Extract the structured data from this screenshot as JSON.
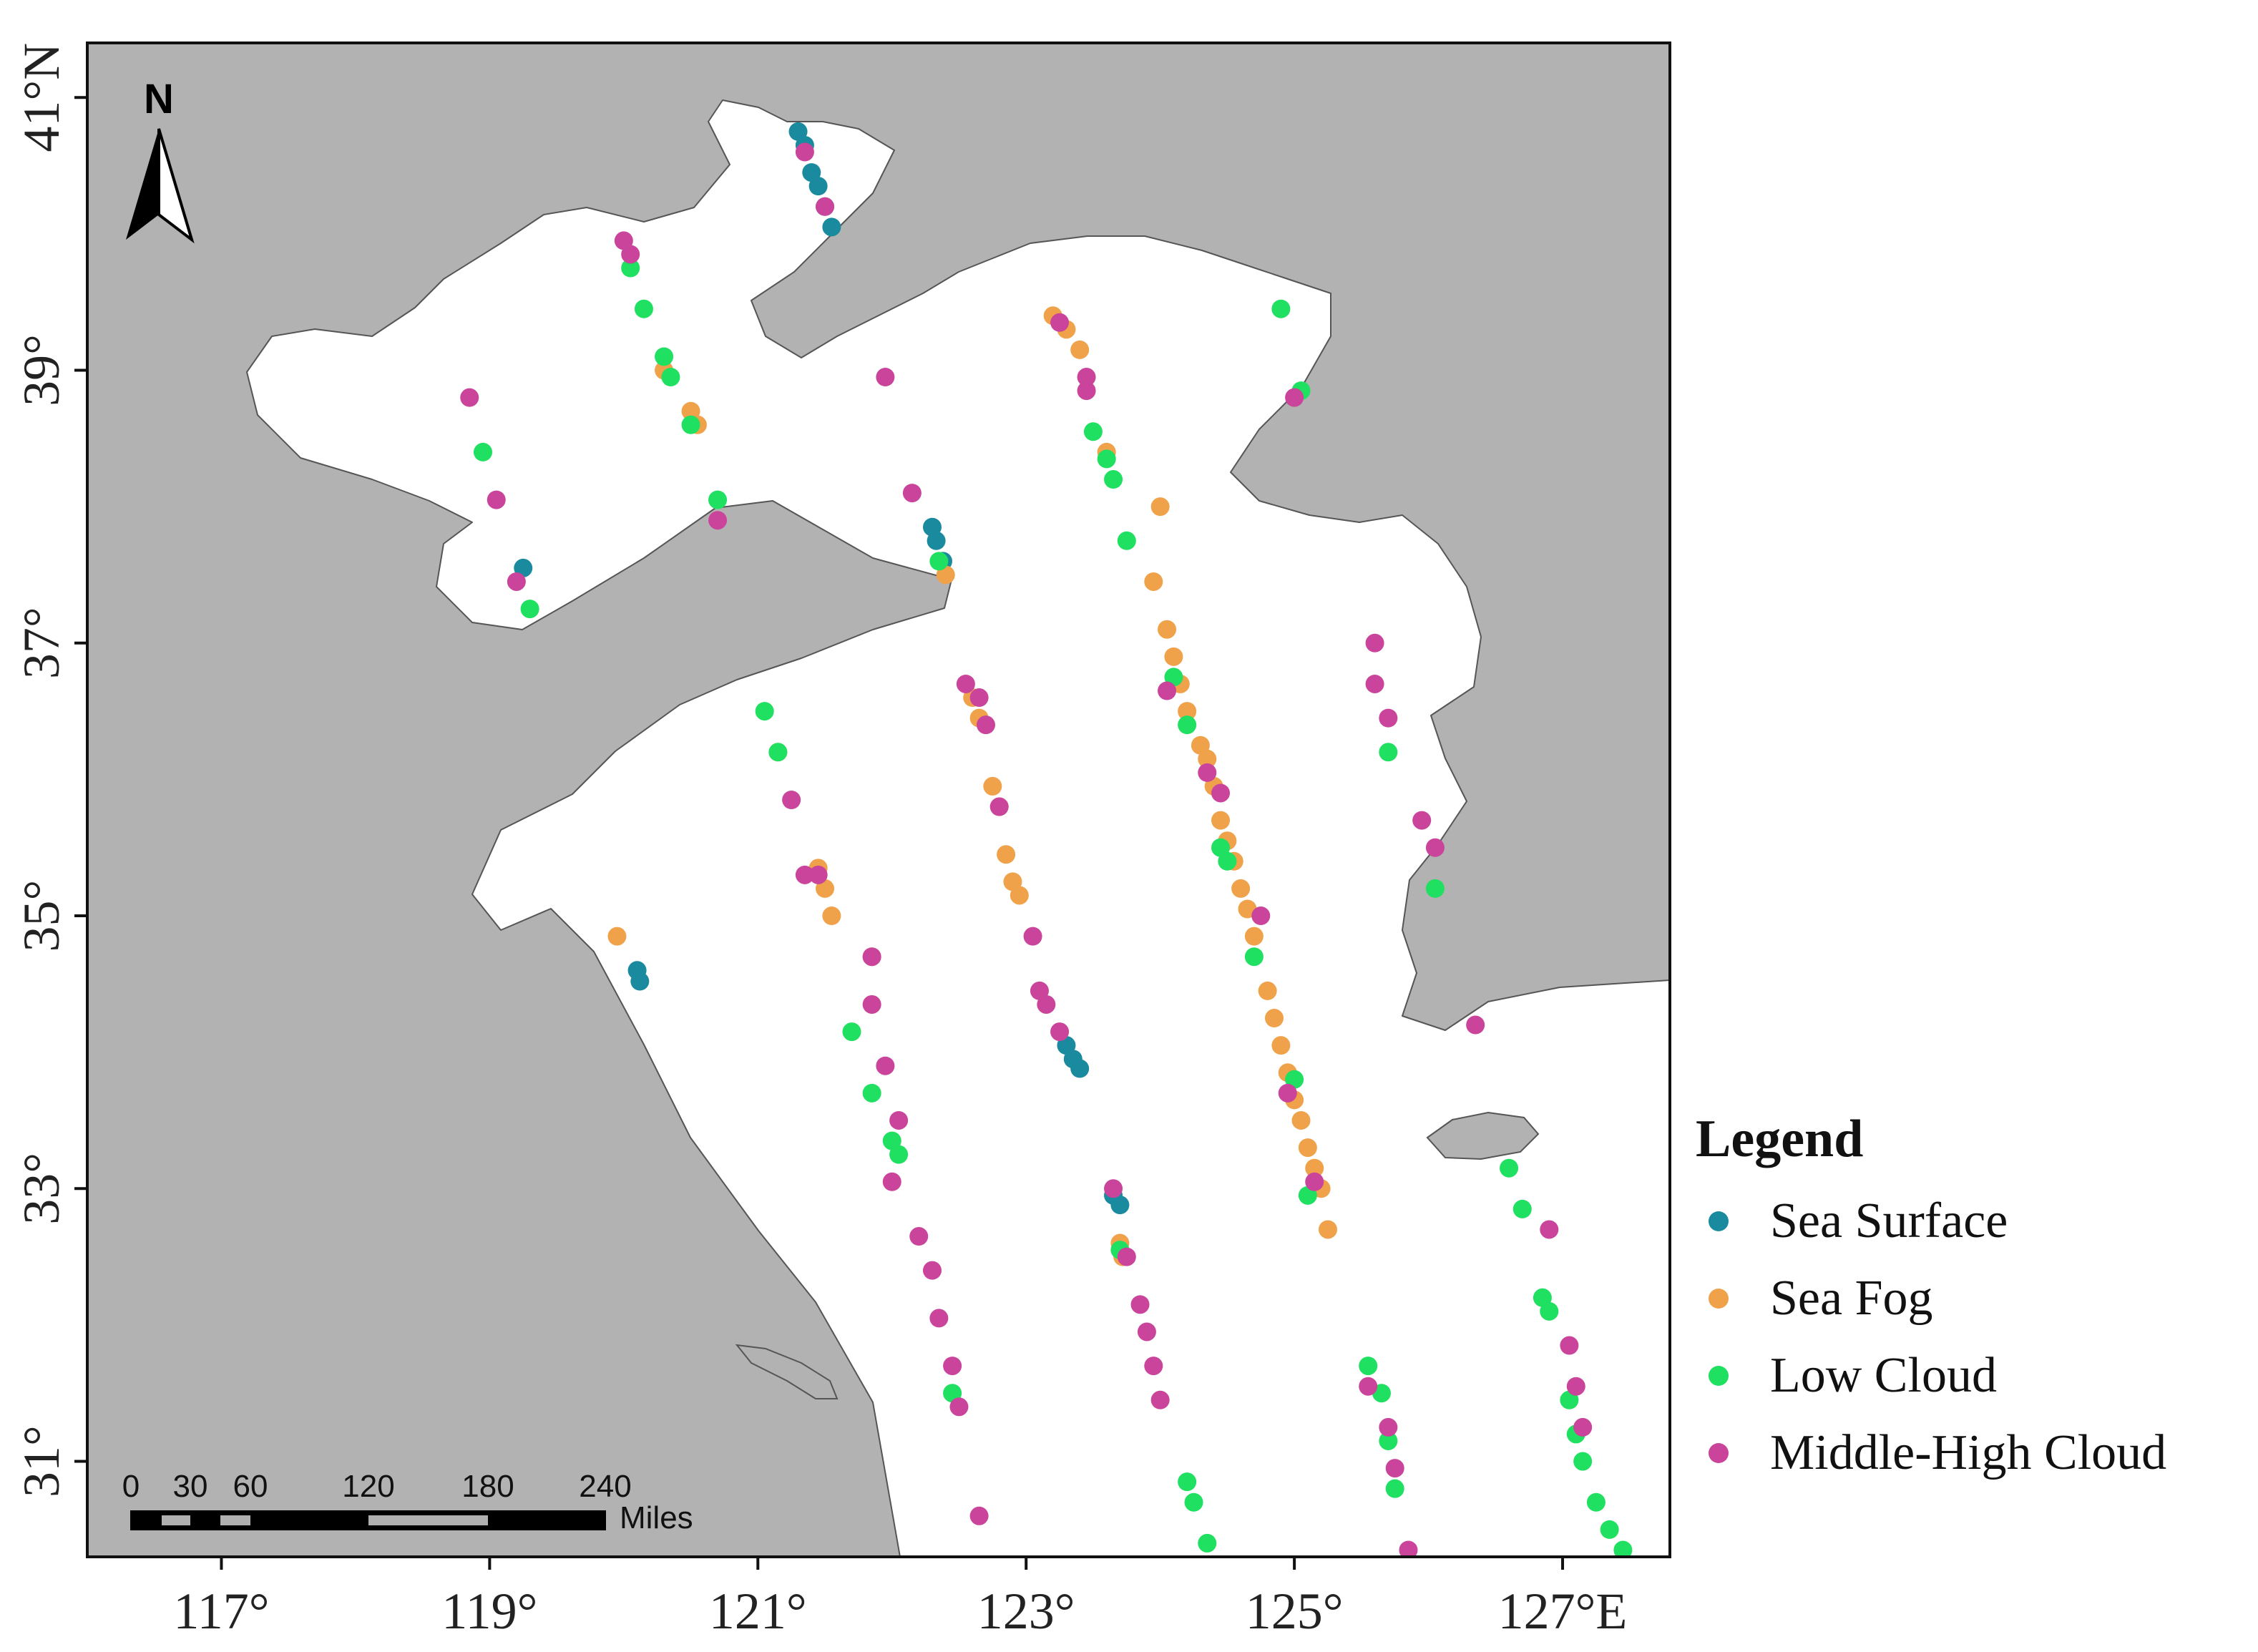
{
  "map": {
    "lon_range": [
      116.0,
      127.8
    ],
    "lat_range": [
      30.3,
      41.4
    ],
    "lon_ticks": [
      117,
      119,
      121,
      123,
      125,
      127
    ],
    "lat_ticks": [
      31,
      33,
      35,
      37,
      39,
      41
    ],
    "lon_tick_labels": [
      "117°",
      "119°",
      "121°",
      "123°",
      "125°",
      "127°E"
    ],
    "lat_tick_labels": [
      "31°",
      "33°",
      "35°",
      "37°",
      "39°",
      "41°N"
    ],
    "land_color": "#b2b2b2",
    "sea_color": "#ffffff",
    "coast_color": "#555555"
  },
  "north_arrow": {
    "label": "N"
  },
  "scale_bar": {
    "labels": [
      "0",
      "30",
      "60",
      "120",
      "180",
      "240"
    ],
    "unit": "Miles"
  },
  "legend": {
    "title": "Legend",
    "items": [
      {
        "label": "Sea Surface",
        "color": "#1a8a9e"
      },
      {
        "label": "Sea Fog",
        "color": "#f0a24a"
      },
      {
        "label": "Low Cloud",
        "color": "#1fe060"
      },
      {
        "label": "Middle-High Cloud",
        "color": "#c9449a"
      }
    ]
  },
  "points": {
    "sea_surface": [
      [
        121.3,
        40.75
      ],
      [
        121.35,
        40.65
      ],
      [
        121.4,
        40.45
      ],
      [
        121.45,
        40.35
      ],
      [
        121.5,
        40.2
      ],
      [
        121.55,
        40.05
      ],
      [
        122.3,
        37.85
      ],
      [
        122.33,
        37.75
      ],
      [
        122.38,
        37.6
      ],
      [
        119.25,
        37.55
      ],
      [
        120.1,
        34.6
      ],
      [
        120.12,
        34.52
      ],
      [
        123.3,
        34.05
      ],
      [
        123.35,
        33.95
      ],
      [
        123.4,
        33.88
      ],
      [
        123.65,
        32.95
      ],
      [
        123.7,
        32.88
      ]
    ],
    "sea_fog": [
      [
        120.3,
        39.0
      ],
      [
        120.5,
        38.7
      ],
      [
        120.55,
        38.6
      ],
      [
        123.2,
        39.4
      ],
      [
        123.3,
        39.3
      ],
      [
        123.4,
        39.15
      ],
      [
        123.6,
        38.4
      ],
      [
        124.0,
        38.0
      ],
      [
        123.95,
        37.45
      ],
      [
        124.05,
        37.1
      ],
      [
        124.1,
        36.9
      ],
      [
        124.15,
        36.7
      ],
      [
        124.2,
        36.5
      ],
      [
        124.3,
        36.25
      ],
      [
        124.35,
        36.15
      ],
      [
        124.4,
        35.95
      ],
      [
        124.45,
        35.7
      ],
      [
        124.5,
        35.55
      ],
      [
        124.55,
        35.4
      ],
      [
        124.6,
        35.2
      ],
      [
        124.65,
        35.05
      ],
      [
        124.7,
        34.85
      ],
      [
        124.8,
        34.45
      ],
      [
        124.85,
        34.25
      ],
      [
        124.9,
        34.05
      ],
      [
        124.95,
        33.85
      ],
      [
        125.0,
        33.65
      ],
      [
        125.05,
        33.5
      ],
      [
        125.1,
        33.3
      ],
      [
        125.15,
        33.15
      ],
      [
        125.2,
        33.0
      ],
      [
        125.25,
        32.7
      ],
      [
        121.15,
        36.2
      ],
      [
        121.45,
        35.35
      ],
      [
        121.5,
        35.2
      ],
      [
        121.55,
        35.0
      ],
      [
        121.85,
        34.7
      ],
      [
        122.6,
        36.6
      ],
      [
        122.65,
        36.45
      ],
      [
        122.75,
        35.95
      ],
      [
        122.8,
        35.8
      ],
      [
        122.85,
        35.45
      ],
      [
        122.9,
        35.25
      ],
      [
        122.95,
        35.15
      ],
      [
        119.95,
        34.85
      ],
      [
        122.4,
        37.5
      ],
      [
        123.7,
        32.6
      ],
      [
        123.72,
        32.5
      ]
    ],
    "low_cloud": [
      [
        120.05,
        39.75
      ],
      [
        120.15,
        39.45
      ],
      [
        120.3,
        39.1
      ],
      [
        120.35,
        38.95
      ],
      [
        120.5,
        38.6
      ],
      [
        120.7,
        38.05
      ],
      [
        118.95,
        38.4
      ],
      [
        119.3,
        37.25
      ],
      [
        123.5,
        38.55
      ],
      [
        123.6,
        38.35
      ],
      [
        123.65,
        38.2
      ],
      [
        123.75,
        37.75
      ],
      [
        124.1,
        36.75
      ],
      [
        124.2,
        36.4
      ],
      [
        124.45,
        35.5
      ],
      [
        124.5,
        35.4
      ],
      [
        124.7,
        34.7
      ],
      [
        125.0,
        33.8
      ],
      [
        125.1,
        32.95
      ],
      [
        124.9,
        39.45
      ],
      [
        125.05,
        38.85
      ],
      [
        125.7,
        36.2
      ],
      [
        126.05,
        35.2
      ],
      [
        121.05,
        36.5
      ],
      [
        121.15,
        36.2
      ],
      [
        121.7,
        34.15
      ],
      [
        121.85,
        33.7
      ],
      [
        122.0,
        33.35
      ],
      [
        122.05,
        33.25
      ],
      [
        122.45,
        31.5
      ],
      [
        123.7,
        32.55
      ],
      [
        124.2,
        30.85
      ],
      [
        124.25,
        30.7
      ],
      [
        124.35,
        30.4
      ],
      [
        125.55,
        31.7
      ],
      [
        125.65,
        31.5
      ],
      [
        125.7,
        31.15
      ],
      [
        125.75,
        30.8
      ],
      [
        126.6,
        33.15
      ],
      [
        126.7,
        32.85
      ],
      [
        126.85,
        32.2
      ],
      [
        126.9,
        32.1
      ],
      [
        127.05,
        31.45
      ],
      [
        127.1,
        31.2
      ],
      [
        127.15,
        31.0
      ],
      [
        127.25,
        30.7
      ],
      [
        127.35,
        30.5
      ],
      [
        127.45,
        30.35
      ],
      [
        122.35,
        37.6
      ]
    ],
    "middle_high": [
      [
        121.35,
        40.6
      ],
      [
        121.5,
        40.2
      ],
      [
        120.0,
        39.95
      ],
      [
        120.05,
        39.85
      ],
      [
        121.95,
        38.95
      ],
      [
        122.15,
        38.1
      ],
      [
        120.7,
        37.9
      ],
      [
        118.85,
        38.8
      ],
      [
        119.05,
        38.05
      ],
      [
        119.2,
        37.45
      ],
      [
        123.25,
        39.35
      ],
      [
        123.45,
        38.95
      ],
      [
        123.45,
        38.85
      ],
      [
        125.0,
        38.8
      ],
      [
        124.05,
        36.65
      ],
      [
        124.35,
        36.05
      ],
      [
        124.45,
        35.9
      ],
      [
        124.75,
        35.0
      ],
      [
        124.95,
        33.7
      ],
      [
        125.15,
        33.05
      ],
      [
        125.6,
        37.0
      ],
      [
        125.6,
        36.7
      ],
      [
        125.7,
        36.45
      ],
      [
        125.95,
        35.7
      ],
      [
        126.05,
        35.5
      ],
      [
        126.35,
        34.2
      ],
      [
        121.25,
        35.85
      ],
      [
        121.35,
        35.3
      ],
      [
        121.45,
        35.3
      ],
      [
        121.85,
        34.7
      ],
      [
        121.85,
        34.35
      ],
      [
        121.95,
        33.9
      ],
      [
        122.05,
        33.5
      ],
      [
        122.0,
        33.05
      ],
      [
        122.2,
        32.65
      ],
      [
        122.3,
        32.4
      ],
      [
        122.35,
        32.05
      ],
      [
        122.45,
        31.7
      ],
      [
        122.5,
        31.4
      ],
      [
        122.65,
        36.6
      ],
      [
        122.7,
        36.4
      ],
      [
        122.8,
        35.8
      ],
      [
        123.05,
        34.85
      ],
      [
        123.1,
        34.45
      ],
      [
        123.15,
        34.35
      ],
      [
        123.25,
        34.15
      ],
      [
        123.65,
        33.0
      ],
      [
        123.75,
        32.5
      ],
      [
        123.85,
        32.15
      ],
      [
        123.9,
        31.95
      ],
      [
        123.95,
        31.7
      ],
      [
        124.0,
        31.45
      ],
      [
        125.55,
        31.55
      ],
      [
        125.7,
        31.25
      ],
      [
        125.75,
        30.95
      ],
      [
        125.85,
        30.35
      ],
      [
        126.9,
        32.7
      ],
      [
        127.05,
        31.85
      ],
      [
        127.1,
        31.55
      ],
      [
        127.15,
        31.25
      ],
      [
        122.65,
        30.6
      ],
      [
        122.55,
        36.7
      ]
    ]
  }
}
